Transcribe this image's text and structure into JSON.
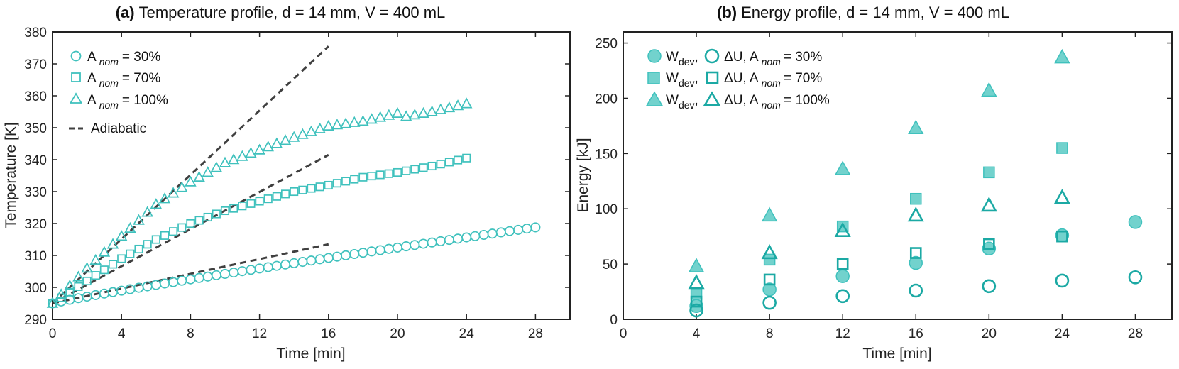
{
  "colors": {
    "teal": "#3fc1bd",
    "teal_dark": "#1ba9a4",
    "teal_fill": "#72d2cd",
    "adiabatic": "#404040"
  },
  "chart_data": [
    {
      "type": "scatter",
      "panel": "a",
      "title_bold": "(a)",
      "title": "Temperature profile, d = 14 mm, V = 400 mL",
      "xlabel": "Time [min]",
      "ylabel": "Temperature [K]",
      "xlim": [
        0,
        30
      ],
      "ylim": [
        290,
        380
      ],
      "xticks": [
        "0",
        "4",
        "8",
        "12",
        "16",
        "20",
        "24",
        "28"
      ],
      "yticks": [
        "290",
        "300",
        "310",
        "320",
        "330",
        "340",
        "350",
        "360",
        "370",
        "380"
      ],
      "legend_position": "top-left",
      "series": [
        {
          "name": "A nom = 30%",
          "legend": {
            "a": "A",
            "sub": "nom",
            "rest": "= 30%"
          },
          "marker": "circle",
          "x": [
            0,
            28
          ],
          "y": [
            295,
            318.8
          ],
          "mode": "linear-sampled-every-0.5-min"
        },
        {
          "name": "A nom = 70%",
          "legend": {
            "a": "A",
            "sub": "nom",
            "rest": "= 70%"
          },
          "marker": "square",
          "x": [
            0,
            24
          ],
          "y": [
            295,
            340.5
          ],
          "mode": "curve",
          "curve": [
            [
              0,
              295
            ],
            [
              2,
              302
            ],
            [
              4,
              309
            ],
            [
              6,
              315
            ],
            [
              8,
              320
            ],
            [
              10,
              324
            ],
            [
              12,
              327
            ],
            [
              14,
              330
            ],
            [
              16,
              332
            ],
            [
              18,
              334.5
            ],
            [
              20,
              336
            ],
            [
              22,
              338
            ],
            [
              24,
              340.5
            ]
          ]
        },
        {
          "name": "A nom = 100%",
          "legend": {
            "a": "A",
            "sub": "nom",
            "rest": "= 100%"
          },
          "marker": "triangle",
          "x": [
            0,
            24
          ],
          "y": [
            295,
            357.5
          ],
          "mode": "curve",
          "curve": [
            [
              0,
              295
            ],
            [
              2,
              306
            ],
            [
              4,
              316
            ],
            [
              6,
              326
            ],
            [
              8,
              333
            ],
            [
              10,
              339
            ],
            [
              12,
              343
            ],
            [
              14,
              347
            ],
            [
              16,
              350.5
            ],
            [
              18,
              352
            ],
            [
              20,
              354.5
            ],
            [
              20.5,
              353.5
            ],
            [
              22,
              355
            ],
            [
              24,
              357.5
            ]
          ]
        },
        {
          "name": "Adiabatic",
          "legend": {
            "a": "Adiabatic",
            "sub": "",
            "rest": ""
          },
          "marker": "dashed-line",
          "lines": [
            {
              "x": [
                0,
                16
              ],
              "y": [
                295,
                375.5
              ]
            },
            {
              "x": [
                0,
                16
              ],
              "y": [
                295,
                341.5
              ]
            },
            {
              "x": [
                0,
                16
              ],
              "y": [
                295,
                313.5
              ]
            }
          ]
        }
      ]
    },
    {
      "type": "scatter",
      "panel": "b",
      "title_bold": "(b)",
      "title": "Energy profile, d = 14 mm, V = 400 mL",
      "xlabel": "Time [min]",
      "ylabel": "Energy [kJ]",
      "xlim": [
        0,
        30
      ],
      "ylim": [
        0,
        260
      ],
      "xticks": [
        "0",
        "4",
        "8",
        "12",
        "16",
        "20",
        "24",
        "28"
      ],
      "yticks": [
        "0",
        "50",
        "100",
        "150",
        "200",
        "250"
      ],
      "legend_position": "top-left",
      "legend": [
        {
          "w": "W",
          "wsub": "dev",
          "u": "ΔU, A",
          "usub": "nom",
          "rest": "= 30%",
          "marker": "circle"
        },
        {
          "w": "W",
          "wsub": "dev",
          "u": "ΔU, A",
          "usub": "nom",
          "rest": "= 70%",
          "marker": "square"
        },
        {
          "w": "W",
          "wsub": "dev",
          "u": "ΔU, A",
          "usub": "nom",
          "rest": "= 100%",
          "marker": "triangle"
        }
      ],
      "series": [
        {
          "name": "W dev, A nom = 30%",
          "marker": "circle",
          "filled": true,
          "x": [
            4,
            8,
            12,
            16,
            20,
            24,
            28
          ],
          "y": [
            12,
            27,
            39,
            51,
            64,
            76,
            88
          ]
        },
        {
          "name": "ΔU, A nom = 30%",
          "marker": "circle",
          "filled": false,
          "x": [
            4,
            8,
            12,
            16,
            20,
            24,
            28
          ],
          "y": [
            8,
            15,
            21,
            26,
            30,
            35,
            38
          ]
        },
        {
          "name": "W dev, A nom = 70%",
          "marker": "square",
          "filled": true,
          "x": [
            4,
            8,
            12,
            16,
            20,
            24
          ],
          "y": [
            23,
            54,
            84,
            109,
            133,
            155
          ]
        },
        {
          "name": "ΔU, A nom = 70%",
          "marker": "square",
          "filled": false,
          "x": [
            4,
            8,
            12,
            16,
            20,
            24
          ],
          "y": [
            16,
            36,
            50,
            60,
            68,
            75
          ]
        },
        {
          "name": "W dev, A nom = 100%",
          "marker": "triangle",
          "filled": true,
          "x": [
            4,
            8,
            12,
            16,
            20,
            24
          ],
          "y": [
            48,
            94,
            136,
            173,
            207,
            237
          ]
        },
        {
          "name": "ΔU, A nom = 100%",
          "marker": "triangle",
          "filled": false,
          "x": [
            4,
            8,
            12,
            16,
            20,
            24
          ],
          "y": [
            33,
            60,
            80,
            94,
            103,
            110
          ]
        }
      ]
    }
  ]
}
